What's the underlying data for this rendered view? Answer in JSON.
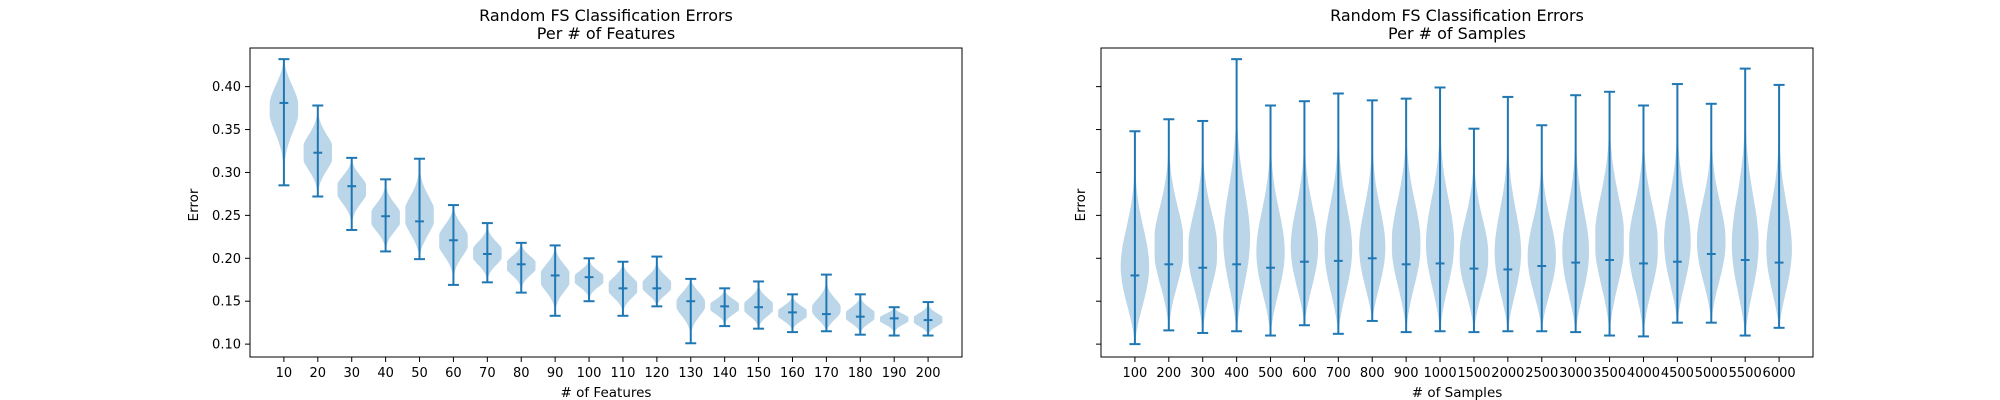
{
  "colors": {
    "violin_body": "#1f77b4",
    "violin_lines": "#1f77b4",
    "axes": "#000000"
  },
  "chart_data": [
    {
      "type": "violin",
      "title": "Random FS Classification Errors\nPer # of Features",
      "title_lines": [
        "Random FS Classification Errors",
        "Per # of Features"
      ],
      "xlabel": "# of Features",
      "ylabel": "Error",
      "ylim": [
        0.085,
        0.445
      ],
      "yticks": [
        0.1,
        0.15,
        0.2,
        0.25,
        0.3,
        0.35,
        0.4
      ],
      "ytick_labels": [
        "0.10",
        "0.15",
        "0.20",
        "0.25",
        "0.30",
        "0.35",
        "0.40"
      ],
      "show_ytick_labels": true,
      "categories": [
        "10",
        "20",
        "30",
        "40",
        "50",
        "60",
        "70",
        "80",
        "90",
        "100",
        "110",
        "120",
        "130",
        "140",
        "150",
        "160",
        "170",
        "180",
        "190",
        "200"
      ],
      "min": [
        0.285,
        0.272,
        0.233,
        0.208,
        0.199,
        0.169,
        0.172,
        0.16,
        0.133,
        0.15,
        0.133,
        0.144,
        0.101,
        0.121,
        0.118,
        0.114,
        0.115,
        0.111,
        0.11,
        0.11
      ],
      "max": [
        0.432,
        0.378,
        0.317,
        0.292,
        0.316,
        0.262,
        0.241,
        0.218,
        0.215,
        0.2,
        0.196,
        0.202,
        0.176,
        0.165,
        0.173,
        0.158,
        0.181,
        0.158,
        0.143,
        0.149
      ],
      "median": [
        0.381,
        0.323,
        0.284,
        0.249,
        0.243,
        0.221,
        0.205,
        0.193,
        0.18,
        0.178,
        0.165,
        0.165,
        0.15,
        0.144,
        0.143,
        0.137,
        0.135,
        0.132,
        0.13,
        0.128
      ]
    },
    {
      "type": "violin",
      "title": "Random FS Classification Errors\nPer # of Samples",
      "title_lines": [
        "Random FS Classification Errors",
        "Per # of Samples"
      ],
      "xlabel": "# of Samples",
      "ylabel": "Error",
      "ylim": [
        0.085,
        0.445
      ],
      "yticks": [
        0.1,
        0.15,
        0.2,
        0.25,
        0.3,
        0.35,
        0.4
      ],
      "ytick_labels": [],
      "show_ytick_labels": false,
      "categories": [
        "100",
        "200",
        "300",
        "400",
        "500",
        "600",
        "700",
        "800",
        "900",
        "1000",
        "1500",
        "2000",
        "2500",
        "3000",
        "3500",
        "4000",
        "4500",
        "5000",
        "5500",
        "6000"
      ],
      "min": [
        0.1,
        0.116,
        0.113,
        0.115,
        0.11,
        0.122,
        0.112,
        0.127,
        0.114,
        0.115,
        0.114,
        0.115,
        0.115,
        0.114,
        0.11,
        0.109,
        0.125,
        0.125,
        0.11,
        0.119
      ],
      "max": [
        0.348,
        0.362,
        0.36,
        0.432,
        0.378,
        0.383,
        0.392,
        0.384,
        0.386,
        0.399,
        0.351,
        0.388,
        0.355,
        0.39,
        0.394,
        0.378,
        0.403,
        0.38,
        0.421,
        0.402
      ],
      "median": [
        0.18,
        0.193,
        0.189,
        0.193,
        0.189,
        0.196,
        0.197,
        0.2,
        0.193,
        0.194,
        0.188,
        0.187,
        0.191,
        0.195,
        0.198,
        0.194,
        0.196,
        0.205,
        0.198,
        0.195
      ]
    }
  ]
}
